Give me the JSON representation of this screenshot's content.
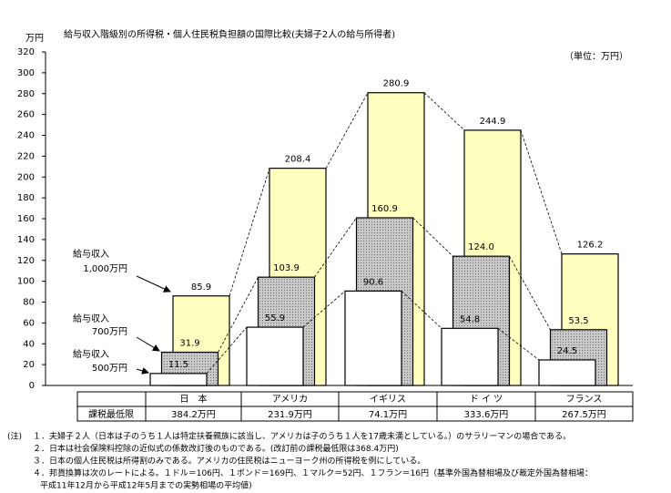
{
  "chart_data": {
    "type": "bar",
    "title": "給与収入階級別の所得税・個人住民税負担額の国際比較(夫婦子2人の給与所得者)",
    "y_unit": "万円",
    "unit_note": "（単位：万円）",
    "categories": [
      "日　本",
      "アメリカ",
      "イギリス",
      "ド イ ツ",
      "フランス"
    ],
    "series": [
      {
        "name": "給与収入",
        "income": "1,000万円",
        "color": "#ffffc0",
        "values": [
          85.9,
          208.4,
          280.9,
          244.9,
          126.2
        ]
      },
      {
        "name": "給与収入",
        "income": "700万円",
        "color": "#c8c8c8",
        "values": [
          31.9,
          103.9,
          160.9,
          124,
          53.5
        ],
        "value_labels": [
          "31.9",
          "103.9",
          "160.9",
          "124.0",
          "53.5"
        ]
      },
      {
        "name": "給与収入",
        "income": "500万円",
        "color": "#ffffff",
        "values": [
          11.5,
          55.9,
          90.6,
          54.8,
          24.5
        ]
      }
    ],
    "ylim": [
      0,
      320
    ],
    "yticks": [
      0,
      20,
      40,
      60,
      80,
      100,
      120,
      140,
      160,
      180,
      200,
      220,
      240,
      260,
      280,
      300,
      320
    ],
    "min_taxable": {
      "label": "課税最低限",
      "values": [
        "384.2万円",
        "231.9万円",
        "74.1万円",
        "333.6万円",
        "267.5万円"
      ]
    },
    "notes_head": "(注)",
    "notes": [
      "１．夫婦子２人（日本は子のうち１人は特定扶養親族に該当し、アメリカは子のうち１人を17歳未満としている。）のサラリーマンの場合である。",
      "２．日本は社会保険料控除の近似式の係数改訂後のものである。(改訂前の課税最低限は368.4万円)",
      "３．日本の個人住民税は所得割のみである。アメリカの住民税はニューヨーク州の所得税を例にしている。",
      "４．邦貨換算は次のレートによる。１ドル＝106円、１ポンド＝169円、１マルク＝52円、１フラン＝16円（基準外国為替相場及び裁定外国為替相場：",
      "平成11年12月から平成12年5月までの実勢相場の平均値)"
    ]
  }
}
